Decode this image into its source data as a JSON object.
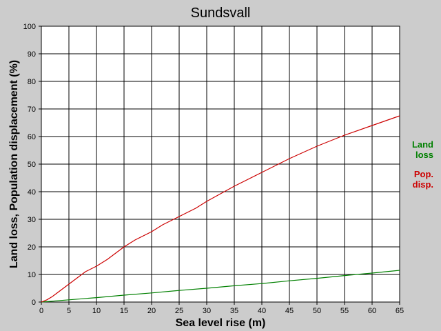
{
  "chart_data": {
    "type": "line",
    "title": "Sundsvall",
    "xlabel": "Sea level rise (m)",
    "ylabel": "Land loss, Population displacement (%)",
    "xlim": [
      0,
      65
    ],
    "ylim": [
      0,
      100
    ],
    "x_ticks": [
      0,
      5,
      10,
      15,
      20,
      25,
      30,
      35,
      40,
      45,
      50,
      55,
      60,
      65
    ],
    "y_ticks": [
      0,
      10,
      20,
      30,
      40,
      50,
      60,
      70,
      80,
      90,
      100
    ],
    "grid": true,
    "legend_placement": "right",
    "series": [
      {
        "name": "Land loss",
        "legend_lines": [
          "Land",
          "loss"
        ],
        "color": "#008000",
        "x": [
          0,
          5,
          10,
          15,
          20,
          25,
          30,
          35,
          40,
          45,
          50,
          55,
          60,
          65
        ],
        "y": [
          0,
          0.8,
          1.6,
          2.5,
          3.3,
          4.2,
          5.0,
          5.9,
          6.7,
          7.7,
          8.6,
          9.6,
          10.5,
          11.5
        ]
      },
      {
        "name": "Pop. disp.",
        "legend_lines": [
          "Pop.",
          "disp."
        ],
        "color": "#cc0000",
        "x": [
          0,
          1,
          2,
          3,
          4,
          5,
          6,
          7,
          8,
          10,
          12,
          14,
          15,
          17,
          20,
          22,
          25,
          28,
          30,
          35,
          40,
          45,
          50,
          55,
          60,
          65
        ],
        "y": [
          0,
          0.8,
          2,
          3.5,
          5,
          6.5,
          8,
          9.5,
          11,
          13,
          15.5,
          18.5,
          20,
          22.5,
          25.5,
          28,
          31,
          34,
          36.5,
          42,
          47,
          52,
          56.5,
          60.5,
          64,
          67.5
        ]
      }
    ]
  }
}
